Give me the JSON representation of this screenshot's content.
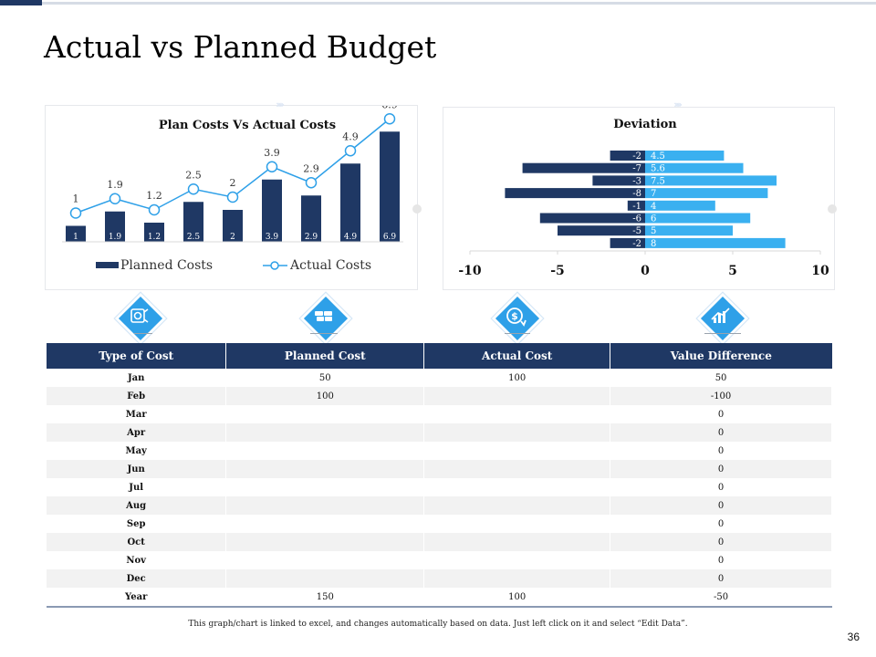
{
  "title": "Actual vs Planned Budget",
  "colors": {
    "navy": "#1f3864",
    "blue": "#2ea0e8",
    "bar_light": "#3ab0f0"
  },
  "icons": [
    "money-bag-icon",
    "cash-stack-icon",
    "dollar-refresh-icon",
    "finance-chart-icon"
  ],
  "chart_data": [
    {
      "type": "bar",
      "title": "Plan Costs Vs Actual Costs",
      "categories": [
        "",
        "",
        "",
        "",
        "",
        "",
        "",
        "",
        ""
      ],
      "series": [
        {
          "name": "Planned Costs",
          "type": "bar",
          "values": [
            1,
            1.9,
            1.2,
            2.5,
            2,
            3.9,
            2.9,
            4.9,
            6.9
          ]
        },
        {
          "name": "Actual Costs",
          "type": "line",
          "values": [
            1,
            1.9,
            1.2,
            2.5,
            2,
            3.9,
            2.9,
            4.9,
            6.9
          ]
        }
      ],
      "legend": "bottom",
      "ylim": [
        0,
        7
      ]
    },
    {
      "type": "bar",
      "orientation": "horizontal",
      "title": "Deviation",
      "series": [
        {
          "values": [
            -2,
            -7,
            -3,
            -8,
            -1,
            -6,
            -5,
            -2
          ]
        },
        {
          "values": [
            4.5,
            5.6,
            7.5,
            7,
            4,
            6,
            5,
            8
          ]
        }
      ],
      "xlim": [
        -10,
        10
      ],
      "xticks": [
        "-10",
        "-5",
        "0",
        "5",
        "10"
      ]
    }
  ],
  "table": {
    "headers": [
      "Type of Cost",
      "Planned Cost",
      "Actual Cost",
      "Value Difference"
    ],
    "rows": [
      [
        "Jan",
        "50",
        "100",
        "50"
      ],
      [
        "Feb",
        "100",
        "",
        "-100"
      ],
      [
        "Mar",
        "",
        "",
        "0"
      ],
      [
        "Apr",
        "",
        "",
        "0"
      ],
      [
        "May",
        "",
        "",
        "0"
      ],
      [
        "Jun",
        "",
        "",
        "0"
      ],
      [
        "Jul",
        "",
        "",
        "0"
      ],
      [
        "Aug",
        "",
        "",
        "0"
      ],
      [
        "Sep",
        "",
        "",
        "0"
      ],
      [
        "Oct",
        "",
        "",
        "0"
      ],
      [
        "Nov",
        "",
        "",
        "0"
      ],
      [
        "Dec",
        "",
        "",
        "0"
      ],
      [
        "Year",
        "150",
        "100",
        "-50"
      ]
    ]
  },
  "footnote": "This graph/chart is linked to excel, and changes automatically based on data. Just left click on it and select “Edit Data”.",
  "page_number": "36"
}
